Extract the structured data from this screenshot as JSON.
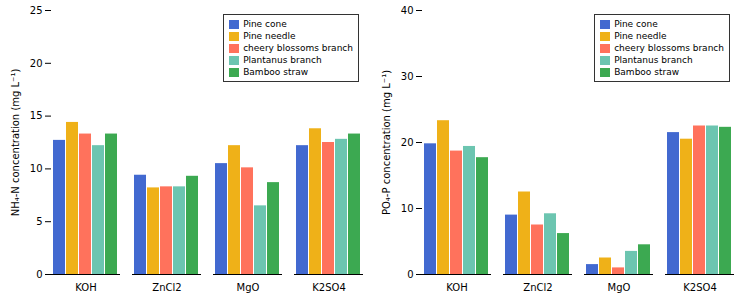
{
  "chart_data": [
    {
      "type": "bar",
      "categories": [
        "KOH",
        "ZnCl2",
        "MgO",
        "K2SO4"
      ],
      "series": [
        {
          "name": "Pine cone",
          "values": [
            12.7,
            9.4,
            10.5,
            12.2
          ]
        },
        {
          "name": "Pine needle",
          "values": [
            14.4,
            8.2,
            12.2,
            13.8
          ]
        },
        {
          "name": "cheery blossoms branch",
          "values": [
            13.3,
            8.3,
            10.1,
            12.5
          ]
        },
        {
          "name": "Plantanus branch",
          "values": [
            12.2,
            8.3,
            6.5,
            12.8
          ]
        },
        {
          "name": "Bamboo straw",
          "values": [
            13.3,
            9.3,
            8.7,
            13.3
          ]
        }
      ],
      "ylabel": "NH₄-N concentration (mg L⁻¹)",
      "ylim": [
        0,
        25
      ],
      "yticks": [
        0,
        5,
        10,
        15,
        20,
        25
      ],
      "legend": "upper right",
      "grid": false
    },
    {
      "type": "bar",
      "categories": [
        "KOH",
        "ZnCl2",
        "MgO",
        "K2SO4"
      ],
      "series": [
        {
          "name": "Pine cone",
          "values": [
            19.8,
            9.0,
            1.5,
            21.5
          ]
        },
        {
          "name": "Pine needle",
          "values": [
            23.3,
            12.5,
            2.5,
            20.5
          ]
        },
        {
          "name": "cheery blossoms branch",
          "values": [
            18.7,
            7.5,
            1.0,
            22.5
          ]
        },
        {
          "name": "Plantanus branch",
          "values": [
            19.4,
            9.2,
            3.5,
            22.5
          ]
        },
        {
          "name": "Bamboo straw",
          "values": [
            17.7,
            6.2,
            4.5,
            22.3
          ]
        }
      ],
      "ylabel": "PO₄-P concentration (mg L⁻¹)",
      "ylim": [
        0,
        40
      ],
      "yticks": [
        0,
        10,
        20,
        30,
        40
      ],
      "legend": "upper right",
      "grid": false
    }
  ]
}
